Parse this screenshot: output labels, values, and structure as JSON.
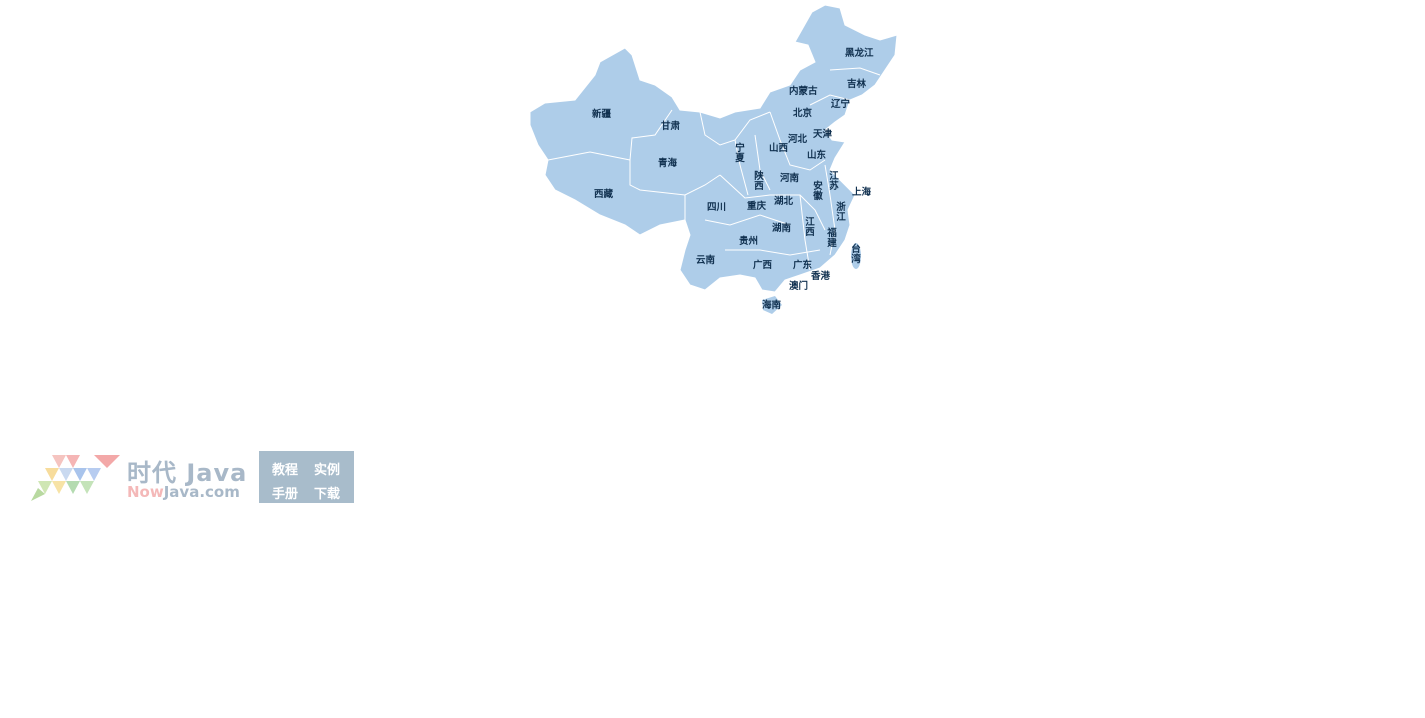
{
  "map": {
    "fill_color": "#aecde9",
    "border_color": "#ffffff",
    "label_color": "#10304f",
    "provinces": [
      {
        "name": "黑龙江"
      },
      {
        "name": "吉林"
      },
      {
        "name": "辽宁"
      },
      {
        "name": "内蒙古"
      },
      {
        "name": "北京"
      },
      {
        "name": "天津"
      },
      {
        "name": "河北"
      },
      {
        "name": "山西"
      },
      {
        "name": "山东"
      },
      {
        "name": "新疆"
      },
      {
        "name": "甘肃"
      },
      {
        "name": "宁夏"
      },
      {
        "name": "青海"
      },
      {
        "name": "陕西"
      },
      {
        "name": "河南"
      },
      {
        "name": "江苏"
      },
      {
        "name": "安徽"
      },
      {
        "name": "上海"
      },
      {
        "name": "西藏"
      },
      {
        "name": "四川"
      },
      {
        "name": "重庆"
      },
      {
        "name": "湖北"
      },
      {
        "name": "浙江"
      },
      {
        "name": "湖南"
      },
      {
        "name": "江西"
      },
      {
        "name": "福建"
      },
      {
        "name": "贵州"
      },
      {
        "name": "台湾"
      },
      {
        "name": "云南"
      },
      {
        "name": "广西"
      },
      {
        "name": "广东"
      },
      {
        "name": "香港"
      },
      {
        "name": "澳门"
      },
      {
        "name": "海南"
      }
    ]
  },
  "watermark": {
    "title": "时代 Java",
    "site_now": "Now",
    "site_rest": "Java.com",
    "links": [
      "教程",
      "实例",
      "手册",
      "下载"
    ]
  }
}
